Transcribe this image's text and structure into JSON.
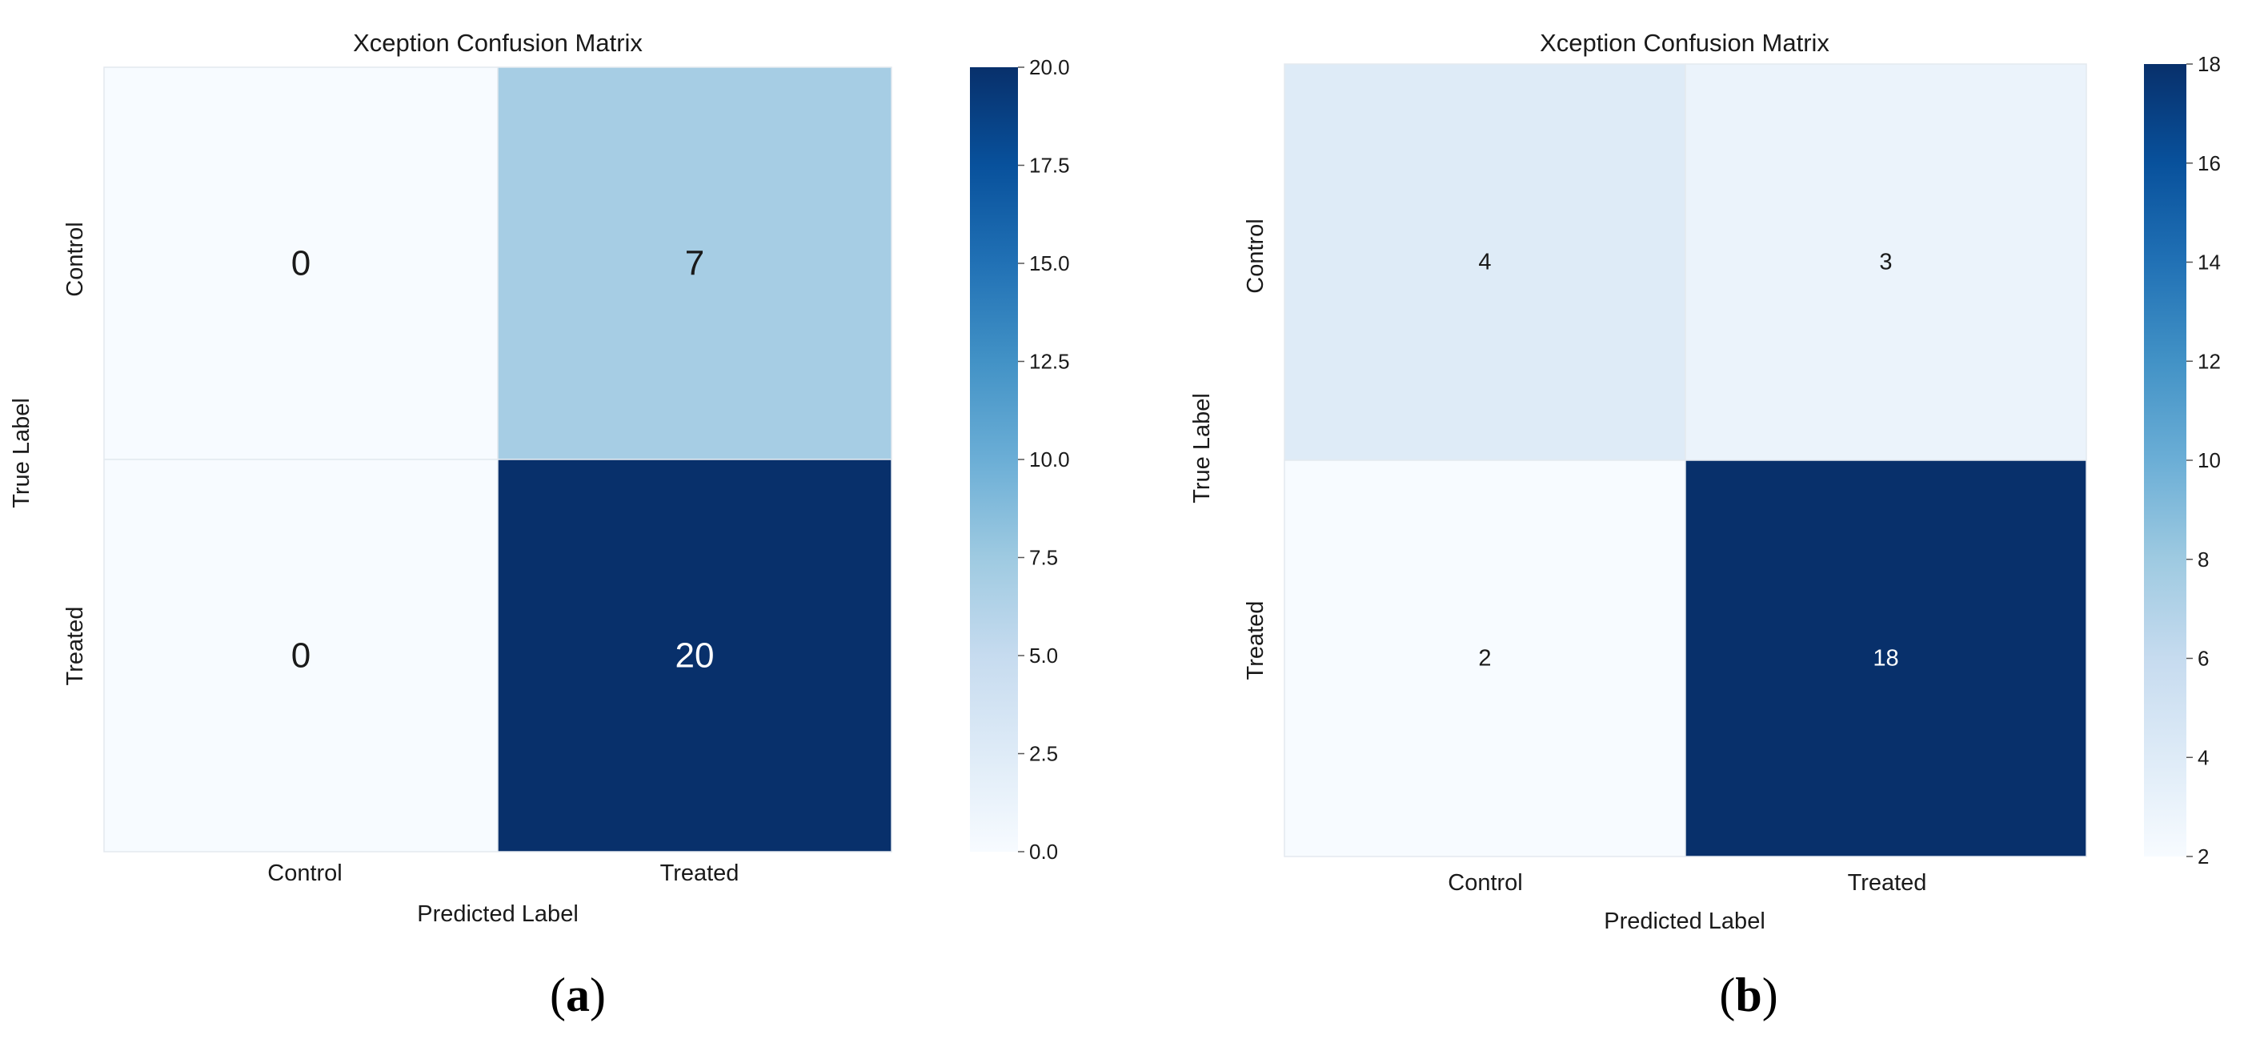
{
  "chart_data": [
    {
      "type": "heatmap",
      "panel_label": "a",
      "title": "Xception Confusion Matrix",
      "xlabel": "Predicted Label",
      "ylabel": "True Label",
      "x_categories": [
        "Control",
        "Treated"
      ],
      "y_categories": [
        "Control",
        "Treated"
      ],
      "values": [
        [
          0,
          7
        ],
        [
          0,
          20
        ]
      ],
      "colorbar": {
        "min": 0,
        "max": 20,
        "ticks": [
          "0.0",
          "2.5",
          "5.0",
          "7.5",
          "10.0",
          "12.5",
          "15.0",
          "17.5",
          "20.0"
        ]
      },
      "colormap": "Blues",
      "annotation_size": "large"
    },
    {
      "type": "heatmap",
      "panel_label": "b",
      "title": "Xception Confusion Matrix",
      "xlabel": "Predicted Label",
      "ylabel": "True Label",
      "x_categories": [
        "Control",
        "Treated"
      ],
      "y_categories": [
        "Control",
        "Treated"
      ],
      "values": [
        [
          4,
          3
        ],
        [
          2,
          18
        ]
      ],
      "colorbar": {
        "min": 2,
        "max": 18,
        "ticks": [
          "2",
          "4",
          "6",
          "8",
          "10",
          "12",
          "14",
          "16",
          "18"
        ]
      },
      "colormap": "Blues",
      "annotation_size": "small"
    }
  ]
}
